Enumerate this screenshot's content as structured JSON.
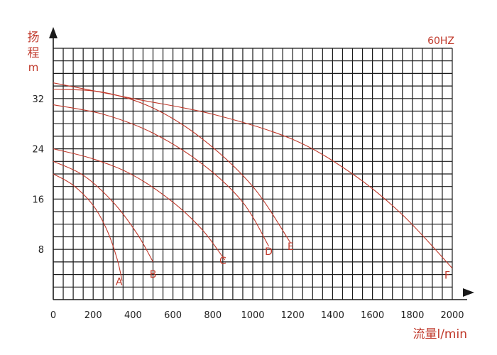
{
  "chart_data": {
    "type": "line",
    "frequency_label": "60HZ",
    "ylabel_lines": [
      "扬",
      "程",
      "m"
    ],
    "xlabel": "流量l/min",
    "xlim": [
      0,
      2000
    ],
    "ylim": [
      0,
      40
    ],
    "x_ticks": [
      0,
      200,
      400,
      600,
      800,
      1000,
      1200,
      1400,
      1600,
      1800,
      2000
    ],
    "y_ticks": [
      8,
      16,
      24,
      32
    ],
    "grid": true,
    "series": [
      {
        "name": "A",
        "color": "#c0392b",
        "points": [
          [
            0,
            20.0
          ],
          [
            100,
            18.2
          ],
          [
            200,
            15.0
          ],
          [
            270,
            11.0
          ],
          [
            320,
            6.5
          ],
          [
            345,
            3.0
          ]
        ]
      },
      {
        "name": "B",
        "color": "#c0392b",
        "points": [
          [
            0,
            22.0
          ],
          [
            150,
            19.8
          ],
          [
            300,
            15.5
          ],
          [
            420,
            10.5
          ],
          [
            500,
            6.0
          ]
        ]
      },
      {
        "name": "C",
        "color": "#c0392b",
        "points": [
          [
            0,
            24.0
          ],
          [
            200,
            22.4
          ],
          [
            400,
            19.8
          ],
          [
            600,
            15.5
          ],
          [
            750,
            11.0
          ],
          [
            860,
            6.3
          ]
        ]
      },
      {
        "name": "D",
        "color": "#c0392b",
        "points": [
          [
            0,
            31.0
          ],
          [
            250,
            29.5
          ],
          [
            500,
            26.5
          ],
          [
            750,
            21.5
          ],
          [
            950,
            15.5
          ],
          [
            1080,
            8.5
          ]
        ]
      },
      {
        "name": "E",
        "color": "#c0392b",
        "points": [
          [
            0,
            33.5
          ],
          [
            250,
            33.0
          ],
          [
            500,
            30.5
          ],
          [
            750,
            25.5
          ],
          [
            1000,
            18.0
          ],
          [
            1190,
            9.0
          ]
        ]
      },
      {
        "name": "F",
        "color": "#c0392b",
        "points": [
          [
            0,
            34.5
          ],
          [
            400,
            32.0
          ],
          [
            800,
            29.5
          ],
          [
            1200,
            25.5
          ],
          [
            1500,
            20.0
          ],
          [
            1750,
            13.5
          ],
          [
            2000,
            5.0
          ]
        ]
      }
    ],
    "curve_labels": [
      {
        "text": "A",
        "x": 330,
        "y": 3.0
      },
      {
        "text": "B",
        "x": 500,
        "y": 4.2
      },
      {
        "text": "C",
        "x": 850,
        "y": 6.3
      },
      {
        "text": "D",
        "x": 1080,
        "y": 7.8
      },
      {
        "text": "E",
        "x": 1190,
        "y": 8.6
      },
      {
        "text": "F",
        "x": 1975,
        "y": 4.0
      }
    ]
  }
}
